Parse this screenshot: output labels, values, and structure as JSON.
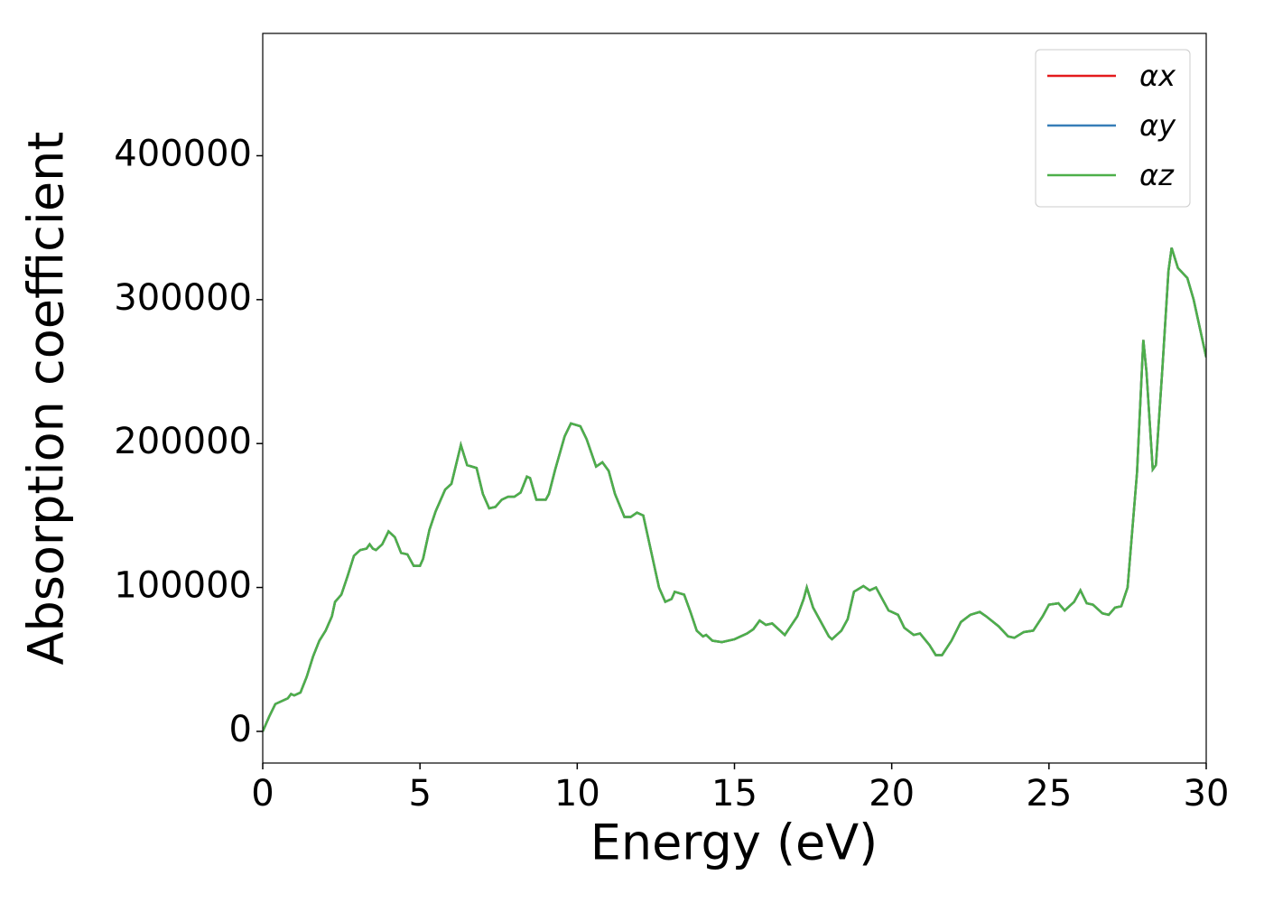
{
  "chart_data": {
    "type": "line",
    "x_label": "Energy (eV)",
    "y_label": "Absorption coefficient",
    "x": [
      0,
      0.2,
      0.4,
      0.6,
      0.8,
      0.9,
      1.0,
      1.2,
      1.4,
      1.6,
      1.8,
      2.0,
      2.2,
      2.3,
      2.5,
      2.7,
      2.9,
      3.1,
      3.3,
      3.4,
      3.5,
      3.6,
      3.8,
      4.0,
      4.2,
      4.4,
      4.6,
      4.8,
      5.0,
      5.1,
      5.3,
      5.5,
      5.8,
      6.0,
      6.2,
      6.3,
      6.4,
      6.5,
      6.8,
      7.0,
      7.2,
      7.4,
      7.6,
      7.8,
      8.0,
      8.2,
      8.4,
      8.5,
      8.7,
      9.0,
      9.1,
      9.3,
      9.6,
      9.8,
      10.1,
      10.3,
      10.6,
      10.8,
      11.0,
      11.2,
      11.5,
      11.7,
      11.9,
      12.1,
      12.3,
      12.6,
      12.8,
      13.0,
      13.1,
      13.4,
      13.6,
      13.8,
      14.0,
      14.1,
      14.3,
      14.6,
      15.0,
      15.4,
      15.6,
      15.8,
      16.0,
      16.2,
      16.4,
      16.6,
      17.0,
      17.2,
      17.3,
      17.5,
      17.7,
      18.0,
      18.1,
      18.4,
      18.6,
      18.8,
      19.1,
      19.3,
      19.5,
      19.7,
      19.9,
      20.2,
      20.4,
      20.7,
      20.9,
      21.2,
      21.4,
      21.6,
      21.9,
      22.2,
      22.5,
      22.8,
      23.0,
      23.4,
      23.7,
      23.9,
      24.2,
      24.5,
      24.8,
      25.0,
      25.3,
      25.5,
      25.8,
      26.0,
      26.2,
      26.4,
      26.7,
      26.9,
      27.1,
      27.3,
      27.5,
      27.8,
      28.0,
      28.1,
      28.3,
      28.4,
      28.6,
      28.8,
      28.9,
      29.1,
      29.4,
      29.6,
      30.0
    ],
    "series": [
      {
        "name": "αx",
        "color": "#e41a1c",
        "values": [
          0,
          10000,
          19000,
          21000,
          23000,
          26000,
          25000,
          27000,
          38000,
          52000,
          63000,
          70000,
          80000,
          90000,
          95000,
          108000,
          122000,
          126000,
          127000,
          130000,
          127000,
          126000,
          130000,
          139000,
          135000,
          124000,
          123000,
          115000,
          115000,
          120000,
          140000,
          153000,
          168000,
          172000,
          190000,
          199000,
          192000,
          185000,
          183000,
          165000,
          155000,
          156000,
          161000,
          163000,
          163000,
          166000,
          177000,
          176000,
          161000,
          161000,
          165000,
          182000,
          205000,
          214000,
          212000,
          203000,
          184000,
          187000,
          181000,
          165000,
          149000,
          149000,
          152000,
          150000,
          130000,
          100000,
          90000,
          92000,
          97000,
          95000,
          83000,
          70000,
          66000,
          67000,
          63000,
          62000,
          64000,
          68000,
          71000,
          77000,
          74000,
          75000,
          71000,
          67000,
          80000,
          92000,
          100000,
          86000,
          78000,
          66000,
          64000,
          70000,
          78000,
          97000,
          101000,
          98000,
          100000,
          92000,
          84000,
          81000,
          72000,
          67000,
          68000,
          60000,
          53000,
          53000,
          63000,
          76000,
          81000,
          83000,
          80000,
          73000,
          66000,
          65000,
          69000,
          70000,
          80000,
          88000,
          89000,
          84000,
          90000,
          98000,
          89000,
          88000,
          82000,
          81000,
          86000,
          87000,
          100000,
          180000,
          272000,
          250000,
          182000,
          185000,
          250000,
          320000,
          336000,
          322000,
          315000,
          300000,
          260000
        ]
      },
      {
        "name": "αy",
        "color": "#377eb8",
        "values": [
          0,
          10000,
          19000,
          21000,
          23000,
          26000,
          25000,
          27000,
          38000,
          52000,
          63000,
          70000,
          80000,
          90000,
          95000,
          108000,
          122000,
          126000,
          127000,
          130000,
          127000,
          126000,
          130000,
          139000,
          135000,
          124000,
          123000,
          115000,
          115000,
          120000,
          140000,
          153000,
          168000,
          172000,
          190000,
          199000,
          192000,
          185000,
          183000,
          165000,
          155000,
          156000,
          161000,
          163000,
          163000,
          166000,
          177000,
          176000,
          161000,
          161000,
          165000,
          182000,
          205000,
          214000,
          212000,
          203000,
          184000,
          187000,
          181000,
          165000,
          149000,
          149000,
          152000,
          150000,
          130000,
          100000,
          90000,
          92000,
          97000,
          95000,
          83000,
          70000,
          66000,
          67000,
          63000,
          62000,
          64000,
          68000,
          71000,
          77000,
          74000,
          75000,
          71000,
          67000,
          80000,
          92000,
          100000,
          86000,
          78000,
          66000,
          64000,
          70000,
          78000,
          97000,
          101000,
          98000,
          100000,
          92000,
          84000,
          81000,
          72000,
          67000,
          68000,
          60000,
          53000,
          53000,
          63000,
          76000,
          81000,
          83000,
          80000,
          73000,
          66000,
          65000,
          69000,
          70000,
          80000,
          88000,
          89000,
          84000,
          90000,
          98000,
          89000,
          88000,
          82000,
          81000,
          86000,
          87000,
          100000,
          180000,
          272000,
          250000,
          182000,
          185000,
          250000,
          320000,
          336000,
          322000,
          315000,
          300000,
          260000
        ]
      },
      {
        "name": "αz",
        "color": "#4daf4a",
        "values": [
          0,
          10000,
          19000,
          21000,
          23000,
          26000,
          25000,
          27000,
          38000,
          52000,
          63000,
          70000,
          80000,
          90000,
          95000,
          108000,
          122000,
          126000,
          127000,
          130000,
          127000,
          126000,
          130000,
          139000,
          135000,
          124000,
          123000,
          115000,
          115000,
          120000,
          140000,
          153000,
          168000,
          172000,
          190000,
          199000,
          192000,
          185000,
          183000,
          165000,
          155000,
          156000,
          161000,
          163000,
          163000,
          166000,
          177000,
          176000,
          161000,
          161000,
          165000,
          182000,
          205000,
          214000,
          212000,
          203000,
          184000,
          187000,
          181000,
          165000,
          149000,
          149000,
          152000,
          150000,
          130000,
          100000,
          90000,
          92000,
          97000,
          95000,
          83000,
          70000,
          66000,
          67000,
          63000,
          62000,
          64000,
          68000,
          71000,
          77000,
          74000,
          75000,
          71000,
          67000,
          80000,
          92000,
          100000,
          86000,
          78000,
          66000,
          64000,
          70000,
          78000,
          97000,
          101000,
          98000,
          100000,
          92000,
          84000,
          81000,
          72000,
          67000,
          68000,
          60000,
          53000,
          53000,
          63000,
          76000,
          81000,
          83000,
          80000,
          73000,
          66000,
          65000,
          69000,
          70000,
          80000,
          88000,
          89000,
          84000,
          90000,
          98000,
          89000,
          88000,
          82000,
          81000,
          86000,
          87000,
          100000,
          180000,
          272000,
          250000,
          182000,
          185000,
          250000,
          320000,
          336000,
          322000,
          315000,
          300000,
          260000
        ]
      }
    ],
    "xlim": [
      0,
      30
    ],
    "xticks": [
      0,
      5,
      10,
      15,
      20,
      25,
      30
    ],
    "ylim": [
      -22000,
      485000
    ],
    "yticks": [
      0,
      100000,
      200000,
      300000,
      400000
    ],
    "grid": false,
    "legend": "upper right"
  }
}
